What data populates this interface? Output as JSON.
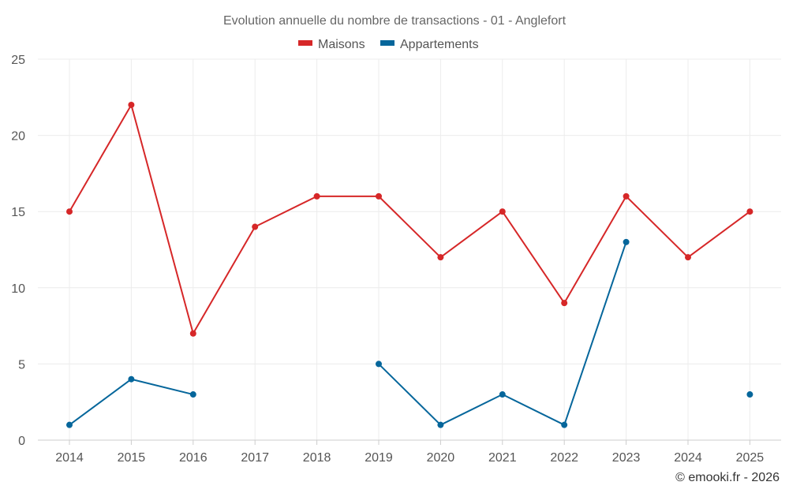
{
  "chart_data": {
    "type": "line",
    "title": "Evolution annuelle du nombre de transactions - 01 - Anglefort",
    "categories": [
      "2014",
      "2015",
      "2016",
      "2017",
      "2018",
      "2019",
      "2020",
      "2021",
      "2022",
      "2023",
      "2024",
      "2025"
    ],
    "series": [
      {
        "name": "Maisons",
        "color": "#d62728",
        "values": [
          15,
          22,
          7,
          14,
          16,
          16,
          12,
          15,
          9,
          16,
          12,
          15
        ]
      },
      {
        "name": "Appartements",
        "color": "#05669b",
        "values": [
          1,
          4,
          3,
          null,
          null,
          5,
          1,
          3,
          1,
          13,
          null,
          3
        ]
      }
    ],
    "ylim": [
      0,
      25
    ],
    "yticks": [
      "0",
      "5",
      "10",
      "15",
      "20",
      "25"
    ],
    "grid": true,
    "legend": "top-center",
    "xlabel": "",
    "ylabel": ""
  },
  "credit": "© emooki.fr - 2026"
}
